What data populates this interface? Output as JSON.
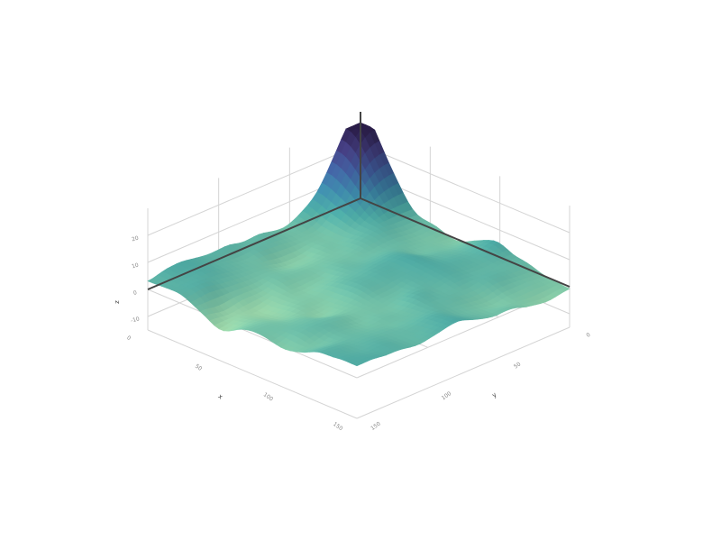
{
  "chart_data": {
    "type": "surface",
    "title": "",
    "colorscale": [
      "#f7f7c6",
      "#b8e2a8",
      "#7fc8a8",
      "#4ba7a2",
      "#3a80a0",
      "#3d5995",
      "#3f3a78",
      "#2a1d48"
    ],
    "axes": {
      "x": {
        "label": "x",
        "range": [
          0,
          150
        ],
        "ticks": [
          {
            "value": 0,
            "label": "0"
          },
          {
            "value": 50,
            "label": "50"
          },
          {
            "value": 100,
            "label": "100"
          },
          {
            "value": 150,
            "label": "150"
          }
        ]
      },
      "y": {
        "label": "y",
        "range": [
          0,
          150
        ],
        "ticks": [
          {
            "value": 0,
            "label": "0"
          },
          {
            "value": 50,
            "label": "50"
          },
          {
            "value": 100,
            "label": "100"
          },
          {
            "value": 150,
            "label": "150"
          }
        ]
      },
      "z": {
        "label": "z",
        "range": [
          -15,
          30
        ],
        "ticks": [
          {
            "value": -10,
            "label": "-10"
          },
          {
            "value": 0,
            "label": "0"
          },
          {
            "value": 10,
            "label": "10"
          },
          {
            "value": 20,
            "label": "20"
          }
        ]
      }
    },
    "surface": {
      "peak": {
        "x": 0,
        "y": 0,
        "z": 28
      },
      "approx_range": [
        -12,
        28
      ]
    },
    "grid": true,
    "legend": "none"
  }
}
